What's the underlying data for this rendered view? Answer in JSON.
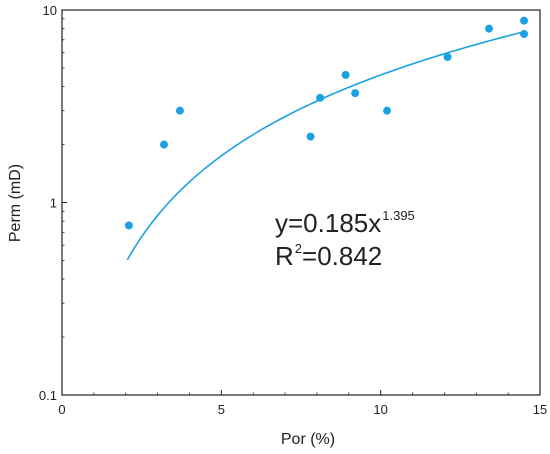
{
  "chart_data": {
    "type": "scatter",
    "xlabel": "Por (%)",
    "ylabel": "Perm (mD)",
    "xlim": [
      0,
      15
    ],
    "ylim": [
      0.1,
      10
    ],
    "y_scale": "log",
    "grid": false,
    "x_ticks": [
      0,
      5,
      10,
      15
    ],
    "x_tick_labels": [
      "0",
      "5",
      "10",
      "15"
    ],
    "y_ticks": [
      0.1,
      1,
      10
    ],
    "y_tick_labels": [
      "0.1",
      "1",
      "10"
    ],
    "points": [
      {
        "x": 2.1,
        "y": 0.76
      },
      {
        "x": 3.2,
        "y": 2.0
      },
      {
        "x": 3.7,
        "y": 3.0
      },
      {
        "x": 7.8,
        "y": 2.2
      },
      {
        "x": 8.1,
        "y": 3.5
      },
      {
        "x": 8.9,
        "y": 4.6
      },
      {
        "x": 9.2,
        "y": 3.7
      },
      {
        "x": 10.2,
        "y": 3.0
      },
      {
        "x": 12.1,
        "y": 5.7
      },
      {
        "x": 13.4,
        "y": 8.0
      },
      {
        "x": 14.5,
        "y": 7.5
      },
      {
        "x": 14.5,
        "y": 8.8
      }
    ],
    "fit": {
      "a": 0.185,
      "b": 1.395,
      "x_range": [
        2.05,
        14.5
      ]
    },
    "equation": {
      "prefix": "y=0.185x",
      "exponent": "1.395",
      "r_base": "R",
      "r_exp": "2",
      "r_value": "=0.842"
    },
    "colors": {
      "point": "#1ba1e2",
      "fit": "#1ba1e2",
      "axis": "#222222"
    }
  }
}
